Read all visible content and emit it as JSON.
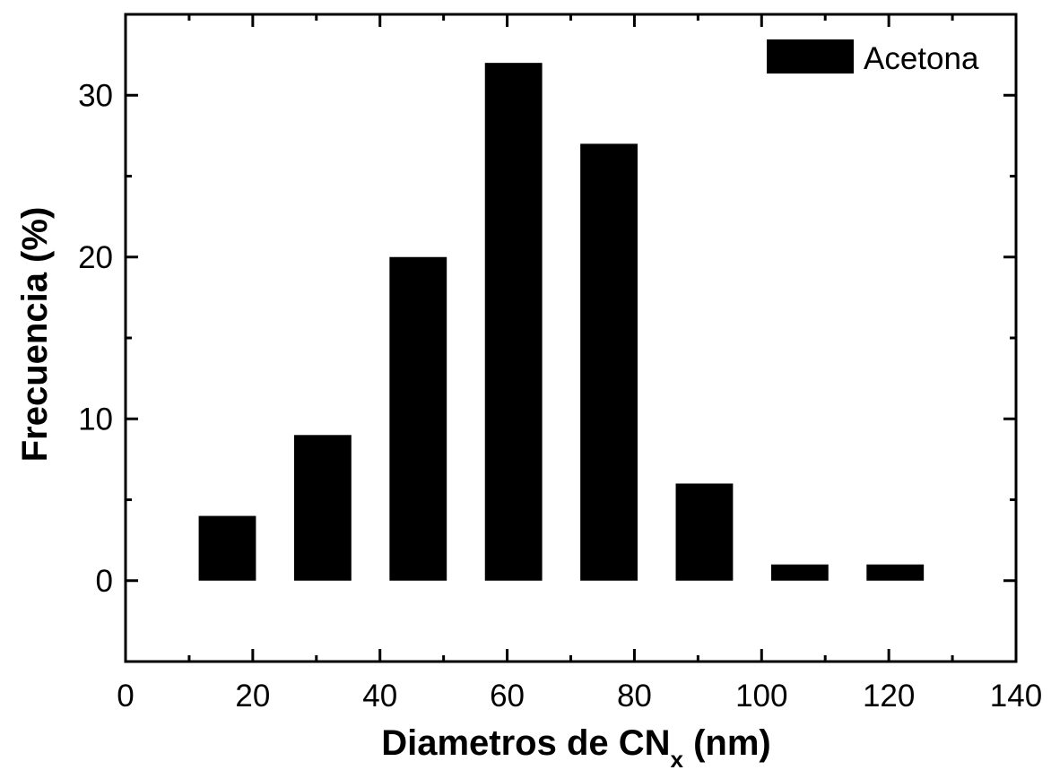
{
  "chart_data": {
    "type": "bar",
    "x": [
      16,
      31,
      46,
      61,
      76,
      91,
      106,
      121
    ],
    "values": [
      4,
      9,
      20,
      32,
      27,
      6,
      1,
      1
    ],
    "bar_width": 9,
    "xlim": [
      0,
      140
    ],
    "ylim": [
      -5,
      35
    ],
    "xticks": [
      0,
      20,
      40,
      60,
      80,
      100,
      120,
      140
    ],
    "xtick_labels": [
      "0",
      "20",
      "40",
      "60",
      "80",
      "100",
      "120",
      "140"
    ],
    "yticks": [
      0,
      10,
      20,
      30
    ],
    "ytick_labels": [
      "0",
      "10",
      "20",
      "30"
    ],
    "xlabel_main": "Diametros de CN",
    "xlabel_sub": "x",
    "xlabel_tail": " (nm)",
    "ylabel": "Frecuencia (%)",
    "series_name": "Acetona",
    "bar_color": "#000000",
    "legend_position": "top-right",
    "grid": false
  }
}
